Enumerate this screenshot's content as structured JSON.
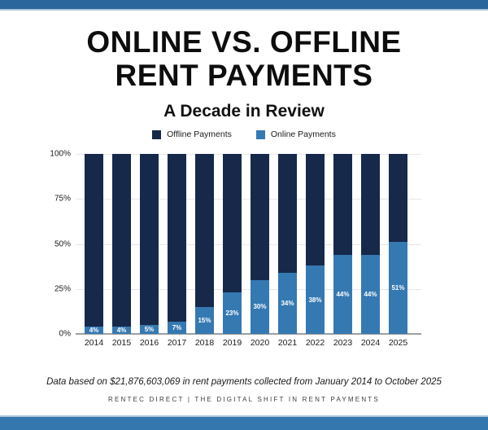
{
  "header": {
    "title_line1": "ONLINE VS. OFFLINE",
    "title_line2": "RENT PAYMENTS",
    "subtitle": "A Decade in Review"
  },
  "legend": {
    "items": [
      {
        "label": "Offline Payments",
        "color": "#16294B"
      },
      {
        "label": "Online Payments",
        "color": "#3579B2"
      }
    ]
  },
  "chart_data": {
    "type": "bar",
    "stacked": true,
    "categories": [
      "2014",
      "2015",
      "2016",
      "2017",
      "2018",
      "2019",
      "2020",
      "2021",
      "2022",
      "2023",
      "2024",
      "2025"
    ],
    "series": [
      {
        "name": "Online Payments",
        "color": "#3579B2",
        "values": [
          4,
          4,
          5,
          7,
          15,
          23,
          30,
          34,
          38,
          44,
          44,
          51
        ],
        "data_labels": [
          "4%",
          "4%",
          "5%",
          "7%",
          "15%",
          "23%",
          "30%",
          "34%",
          "38%",
          "44%",
          "44%",
          "51%"
        ]
      },
      {
        "name": "Offline Payments",
        "color": "#16294B",
        "values": [
          96,
          96,
          95,
          93,
          85,
          77,
          70,
          66,
          62,
          56,
          56,
          49
        ]
      }
    ],
    "title": "Online vs. Offline Rent Payments — A Decade in Review",
    "xlabel": "",
    "ylabel": "",
    "ylim": [
      0,
      100
    ],
    "yticks": [
      "100%",
      "75%",
      "50%",
      "25%",
      "0%"
    ],
    "grid": true,
    "legend_position": "top"
  },
  "decor": {
    "border_color": "#2A659B",
    "border_bottom_color": "#3377AE"
  },
  "footer": {
    "note": "Data based on $21,876,603,069 in rent payments collected from January 2014 to October 2025",
    "credit": "RENTEC DIRECT | THE DIGITAL SHIFT IN RENT PAYMENTS"
  }
}
